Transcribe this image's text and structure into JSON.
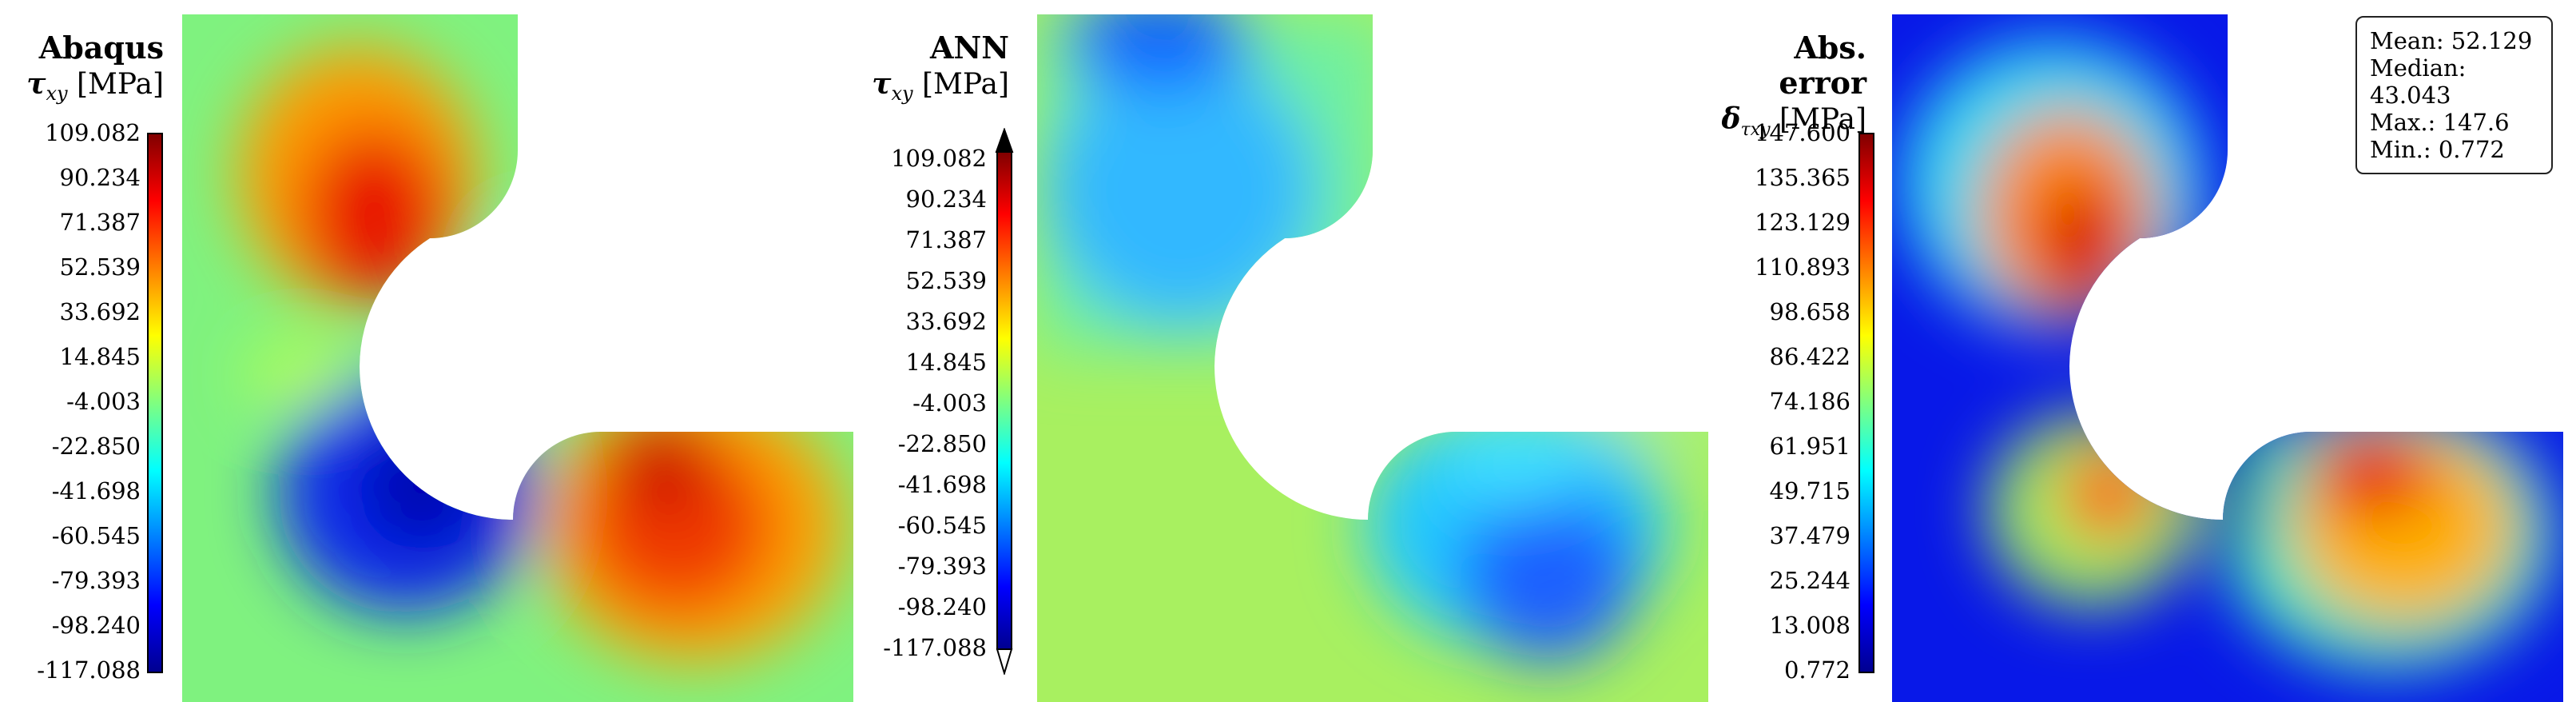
{
  "panels": [
    {
      "title": "Abaqus",
      "quantity": "τ",
      "subscript": "xy",
      "unit": " [MPa]",
      "colorbar_ticks": [
        "109.082",
        "90.234",
        "71.387",
        "52.539",
        "33.692",
        "14.845",
        "-4.003",
        "-22.850",
        "-41.698",
        "-60.545",
        "-79.393",
        "-98.240",
        "-117.088"
      ],
      "extend_arrows": false
    },
    {
      "title": "ANN",
      "quantity": "τ",
      "subscript": "xy",
      "unit": " [MPa]",
      "colorbar_ticks": [
        "109.082",
        "90.234",
        "71.387",
        "52.539",
        "33.692",
        "14.845",
        "-4.003",
        "-22.850",
        "-41.698",
        "-60.545",
        "-79.393",
        "-98.240",
        "-117.088"
      ],
      "extend_arrows": true
    },
    {
      "title": "Abs. error",
      "quantity": "δ",
      "subscript": "τxy",
      "unit": " [MPa]",
      "colorbar_ticks": [
        "147.600",
        "135.365",
        "123.129",
        "110.893",
        "98.658",
        "86.422",
        "74.186",
        "61.951",
        "49.715",
        "37.479",
        "25.244",
        "13.008",
        "0.772"
      ],
      "extend_arrows": false
    }
  ],
  "stats": {
    "mean": "Mean: 52.129",
    "median": "Median: 43.043",
    "max": "Max.: 147.6",
    "min": "Min.: 0.772"
  },
  "colormap": "jet"
}
